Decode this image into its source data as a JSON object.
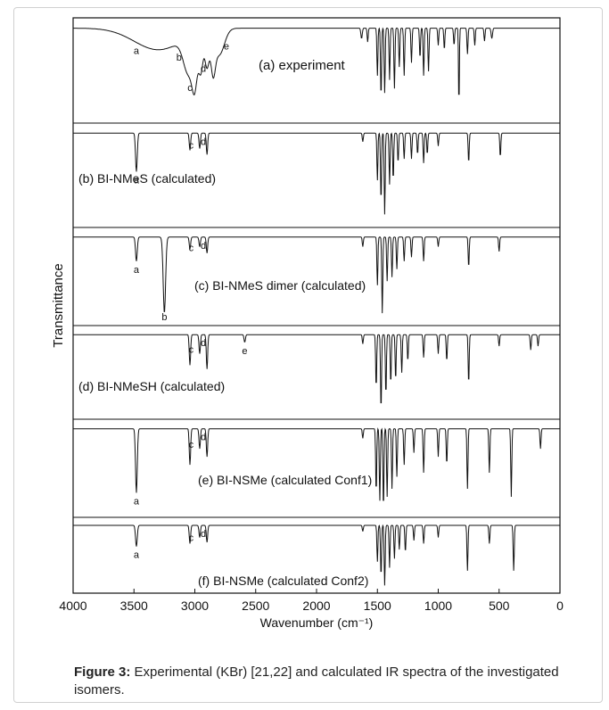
{
  "caption": {
    "label": "Figure 3:",
    "text": "Experimental (KBr) [21,22] and calculated IR spectra of the investigated isomers."
  },
  "chart_data": {
    "type": "line",
    "xlabel": "Wavenumber (cm⁻¹)",
    "ylabel": "Transmittance",
    "xlim": [
      4000,
      0
    ],
    "xticks": [
      4000,
      3500,
      3000,
      2500,
      2000,
      1500,
      1000,
      500,
      0
    ],
    "y_ticks_shown": false,
    "grid": false,
    "legend": "none",
    "line_color": "#111111",
    "series": [
      {
        "name": "(a) experiment",
        "baseline": 0.1,
        "annotations": [
          {
            "label": "a",
            "x": 3480
          },
          {
            "label": "b",
            "x": 3130
          },
          {
            "label": "c",
            "x": 3040
          },
          {
            "label": "d",
            "x": 2930
          },
          {
            "label": "e",
            "x": 2740
          }
        ],
        "peaks": [
          {
            "x": 3300,
            "depth": 0.25,
            "width": 280
          },
          {
            "x": 3050,
            "depth": 0.42,
            "width": 60
          },
          {
            "x": 3000,
            "depth": 0.46,
            "width": 30
          },
          {
            "x": 2950,
            "depth": 0.42,
            "width": 25
          },
          {
            "x": 2900,
            "depth": 0.4,
            "width": 25
          },
          {
            "x": 2850,
            "depth": 0.4,
            "width": 25
          },
          {
            "x": 2800,
            "depth": 0.3,
            "width": 60
          },
          {
            "x": 1630,
            "depth": 0.12,
            "width": 8
          },
          {
            "x": 1580,
            "depth": 0.16,
            "width": 6
          },
          {
            "x": 1500,
            "depth": 0.55,
            "width": 6
          },
          {
            "x": 1470,
            "depth": 0.8,
            "width": 6
          },
          {
            "x": 1440,
            "depth": 0.75,
            "width": 6
          },
          {
            "x": 1400,
            "depth": 0.6,
            "width": 6
          },
          {
            "x": 1360,
            "depth": 0.7,
            "width": 6
          },
          {
            "x": 1320,
            "depth": 0.45,
            "width": 6
          },
          {
            "x": 1280,
            "depth": 0.55,
            "width": 6
          },
          {
            "x": 1220,
            "depth": 0.4,
            "width": 6
          },
          {
            "x": 1150,
            "depth": 0.35,
            "width": 6
          },
          {
            "x": 1120,
            "depth": 0.55,
            "width": 6
          },
          {
            "x": 1080,
            "depth": 0.5,
            "width": 6
          },
          {
            "x": 1000,
            "depth": 0.2,
            "width": 6
          },
          {
            "x": 950,
            "depth": 0.25,
            "width": 6
          },
          {
            "x": 870,
            "depth": 0.2,
            "width": 6
          },
          {
            "x": 830,
            "depth": 0.9,
            "width": 5
          },
          {
            "x": 760,
            "depth": 0.3,
            "width": 6
          },
          {
            "x": 700,
            "depth": 0.2,
            "width": 6
          },
          {
            "x": 620,
            "depth": 0.15,
            "width": 6
          },
          {
            "x": 560,
            "depth": 0.12,
            "width": 8
          }
        ]
      },
      {
        "name": "(b) BI-NMeS (calculated)",
        "baseline": 0.08,
        "annotations": [
          {
            "label": "a",
            "x": 3480
          },
          {
            "label": "c",
            "x": 3030
          },
          {
            "label": "d",
            "x": 2930
          }
        ],
        "peaks": [
          {
            "x": 3480,
            "depth": 0.45,
            "width": 10
          },
          {
            "x": 3040,
            "depth": 0.2,
            "width": 8
          },
          {
            "x": 2960,
            "depth": 0.18,
            "width": 8
          },
          {
            "x": 2900,
            "depth": 0.25,
            "width": 8
          },
          {
            "x": 1620,
            "depth": 0.1,
            "width": 6
          },
          {
            "x": 1500,
            "depth": 0.55,
            "width": 6
          },
          {
            "x": 1470,
            "depth": 0.8,
            "width": 6
          },
          {
            "x": 1440,
            "depth": 0.95,
            "width": 6
          },
          {
            "x": 1400,
            "depth": 0.6,
            "width": 6
          },
          {
            "x": 1370,
            "depth": 0.55,
            "width": 6
          },
          {
            "x": 1330,
            "depth": 0.35,
            "width": 6
          },
          {
            "x": 1280,
            "depth": 0.3,
            "width": 6
          },
          {
            "x": 1220,
            "depth": 0.3,
            "width": 6
          },
          {
            "x": 1170,
            "depth": 0.25,
            "width": 6
          },
          {
            "x": 1120,
            "depth": 0.35,
            "width": 6
          },
          {
            "x": 1090,
            "depth": 0.25,
            "width": 6
          },
          {
            "x": 1000,
            "depth": 0.15,
            "width": 6
          },
          {
            "x": 750,
            "depth": 0.35,
            "width": 6
          },
          {
            "x": 490,
            "depth": 0.28,
            "width": 6
          }
        ]
      },
      {
        "name": "(c) BI-NMeS dimer (calculated)",
        "baseline": 0.08,
        "annotations": [
          {
            "label": "a",
            "x": 3480
          },
          {
            "label": "b",
            "x": 3250
          },
          {
            "label": "c",
            "x": 3030
          },
          {
            "label": "d",
            "x": 2930
          }
        ],
        "peaks": [
          {
            "x": 3480,
            "depth": 0.3,
            "width": 10
          },
          {
            "x": 3250,
            "depth": 0.95,
            "width": 14
          },
          {
            "x": 3040,
            "depth": 0.15,
            "width": 8
          },
          {
            "x": 2960,
            "depth": 0.12,
            "width": 8
          },
          {
            "x": 2900,
            "depth": 0.2,
            "width": 8
          },
          {
            "x": 1620,
            "depth": 0.12,
            "width": 6
          },
          {
            "x": 1500,
            "depth": 0.6,
            "width": 6
          },
          {
            "x": 1460,
            "depth": 0.95,
            "width": 6
          },
          {
            "x": 1420,
            "depth": 0.55,
            "width": 6
          },
          {
            "x": 1380,
            "depth": 0.5,
            "width": 6
          },
          {
            "x": 1340,
            "depth": 0.4,
            "width": 6
          },
          {
            "x": 1280,
            "depth": 0.3,
            "width": 6
          },
          {
            "x": 1220,
            "depth": 0.25,
            "width": 6
          },
          {
            "x": 1120,
            "depth": 0.3,
            "width": 6
          },
          {
            "x": 1000,
            "depth": 0.12,
            "width": 6
          },
          {
            "x": 750,
            "depth": 0.38,
            "width": 6
          },
          {
            "x": 500,
            "depth": 0.18,
            "width": 6
          }
        ]
      },
      {
        "name": "(d) BI-NMeSH (calculated)",
        "baseline": 0.05,
        "annotations": [
          {
            "label": "c",
            "x": 3030
          },
          {
            "label": "d",
            "x": 2930
          },
          {
            "label": "e",
            "x": 2590
          }
        ],
        "peaks": [
          {
            "x": 3040,
            "depth": 0.4,
            "width": 8
          },
          {
            "x": 2960,
            "depth": 0.25,
            "width": 8
          },
          {
            "x": 2900,
            "depth": 0.45,
            "width": 8
          },
          {
            "x": 2590,
            "depth": 0.1,
            "width": 8
          },
          {
            "x": 1620,
            "depth": 0.12,
            "width": 6
          },
          {
            "x": 1510,
            "depth": 0.7,
            "width": 6
          },
          {
            "x": 1470,
            "depth": 1.0,
            "width": 6
          },
          {
            "x": 1430,
            "depth": 0.8,
            "width": 6
          },
          {
            "x": 1390,
            "depth": 0.65,
            "width": 6
          },
          {
            "x": 1350,
            "depth": 0.6,
            "width": 6
          },
          {
            "x": 1300,
            "depth": 0.5,
            "width": 6
          },
          {
            "x": 1250,
            "depth": 0.35,
            "width": 6
          },
          {
            "x": 1120,
            "depth": 0.3,
            "width": 6
          },
          {
            "x": 1000,
            "depth": 0.25,
            "width": 6
          },
          {
            "x": 930,
            "depth": 0.35,
            "width": 6
          },
          {
            "x": 750,
            "depth": 0.65,
            "width": 6
          },
          {
            "x": 500,
            "depth": 0.15,
            "width": 6
          },
          {
            "x": 240,
            "depth": 0.2,
            "width": 6
          },
          {
            "x": 180,
            "depth": 0.15,
            "width": 6
          }
        ]
      },
      {
        "name": "(e) BI-NSMe (calculated Conf1)",
        "baseline": 0.06,
        "annotations": [
          {
            "label": "a",
            "x": 3480
          },
          {
            "label": "c",
            "x": 3030
          },
          {
            "label": "d",
            "x": 2930
          }
        ],
        "peaks": [
          {
            "x": 3480,
            "depth": 0.8,
            "width": 10
          },
          {
            "x": 3040,
            "depth": 0.45,
            "width": 8
          },
          {
            "x": 2960,
            "depth": 0.25,
            "width": 8
          },
          {
            "x": 2900,
            "depth": 0.35,
            "width": 8
          },
          {
            "x": 1620,
            "depth": 0.12,
            "width": 6
          },
          {
            "x": 1510,
            "depth": 0.8,
            "width": 6
          },
          {
            "x": 1480,
            "depth": 0.9,
            "width": 6
          },
          {
            "x": 1450,
            "depth": 1.0,
            "width": 6
          },
          {
            "x": 1420,
            "depth": 0.85,
            "width": 6
          },
          {
            "x": 1380,
            "depth": 0.75,
            "width": 6
          },
          {
            "x": 1340,
            "depth": 0.6,
            "width": 6
          },
          {
            "x": 1280,
            "depth": 0.45,
            "width": 6
          },
          {
            "x": 1200,
            "depth": 0.3,
            "width": 6
          },
          {
            "x": 1120,
            "depth": 0.55,
            "width": 6
          },
          {
            "x": 1000,
            "depth": 0.35,
            "width": 6
          },
          {
            "x": 930,
            "depth": 0.45,
            "width": 6
          },
          {
            "x": 760,
            "depth": 0.75,
            "width": 6
          },
          {
            "x": 580,
            "depth": 0.55,
            "width": 6
          },
          {
            "x": 400,
            "depth": 0.85,
            "width": 6
          },
          {
            "x": 160,
            "depth": 0.25,
            "width": 6
          }
        ]
      },
      {
        "name": "(f) BI-NSMe (calculated Conf2)",
        "baseline": 0.06,
        "annotations": [
          {
            "label": "a",
            "x": 3480
          },
          {
            "label": "c",
            "x": 3030
          },
          {
            "label": "d",
            "x": 2930
          }
        ],
        "peaks": [
          {
            "x": 3480,
            "depth": 0.35,
            "width": 10
          },
          {
            "x": 3040,
            "depth": 0.3,
            "width": 8
          },
          {
            "x": 2960,
            "depth": 0.2,
            "width": 8
          },
          {
            "x": 2900,
            "depth": 0.28,
            "width": 8
          },
          {
            "x": 1620,
            "depth": 0.1,
            "width": 6
          },
          {
            "x": 1500,
            "depth": 0.6,
            "width": 6
          },
          {
            "x": 1470,
            "depth": 0.85,
            "width": 6
          },
          {
            "x": 1440,
            "depth": 1.0,
            "width": 6
          },
          {
            "x": 1400,
            "depth": 0.7,
            "width": 6
          },
          {
            "x": 1360,
            "depth": 0.55,
            "width": 6
          },
          {
            "x": 1320,
            "depth": 0.4,
            "width": 6
          },
          {
            "x": 1270,
            "depth": 0.45,
            "width": 6
          },
          {
            "x": 1200,
            "depth": 0.25,
            "width": 6
          },
          {
            "x": 1120,
            "depth": 0.3,
            "width": 6
          },
          {
            "x": 1000,
            "depth": 0.2,
            "width": 6
          },
          {
            "x": 760,
            "depth": 0.75,
            "width": 6
          },
          {
            "x": 580,
            "depth": 0.3,
            "width": 6
          },
          {
            "x": 380,
            "depth": 0.75,
            "width": 6
          }
        ]
      }
    ]
  }
}
